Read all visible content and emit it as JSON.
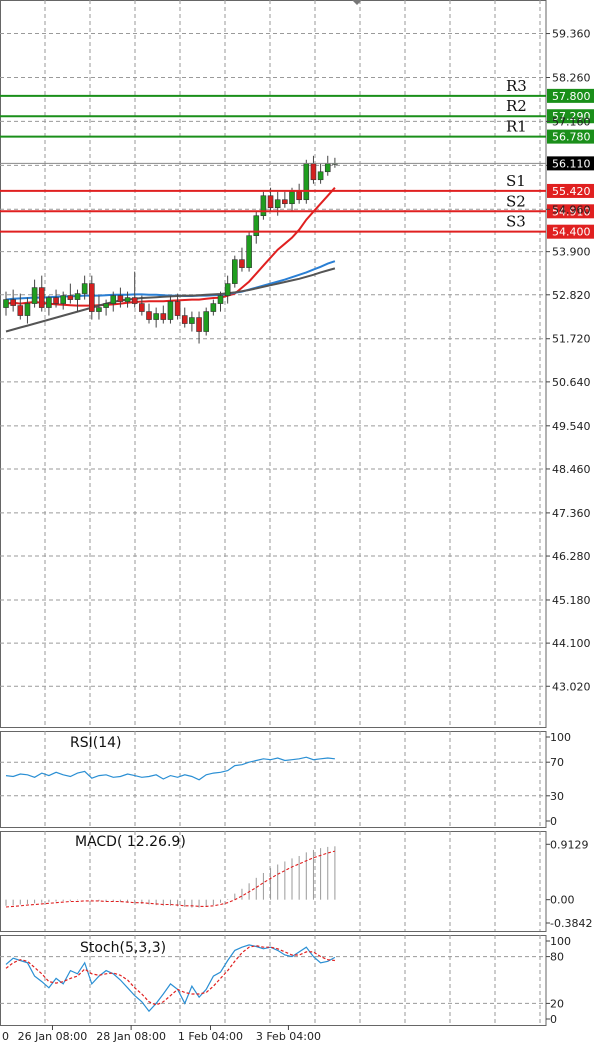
{
  "chart_data": [
    {
      "type": "candlestick",
      "price_axis": {
        "ticks": [
          "59.360",
          "58.260",
          "57.160",
          "56.060",
          "54.960",
          "53.900",
          "52.820",
          "51.720",
          "50.640",
          "49.540",
          "48.460",
          "47.360",
          "46.280",
          "45.180",
          "44.100",
          "43.020"
        ],
        "ylim": [
          42.0,
          60.2
        ]
      },
      "current_price": "56.110",
      "levels": [
        {
          "name": "R3",
          "value": 57.8,
          "label": "57.800",
          "color": "#1a8f1a"
        },
        {
          "name": "R2",
          "value": 57.29,
          "label": "57.290",
          "color": "#1a8f1a"
        },
        {
          "name": "R1",
          "value": 56.78,
          "label": "56.780",
          "color": "#1a8f1a"
        },
        {
          "name": "S1",
          "value": 55.42,
          "label": "55.420",
          "color": "#e02020"
        },
        {
          "name": "S2",
          "value": 54.91,
          "label": "54.910",
          "color": "#e02020"
        },
        {
          "name": "S3",
          "value": 54.4,
          "label": "54.400",
          "color": "#e02020"
        }
      ],
      "candles": [
        [
          52.5,
          52.9,
          52.3,
          52.7
        ],
        [
          52.7,
          52.95,
          52.4,
          52.55
        ],
        [
          52.55,
          52.85,
          52.2,
          52.3
        ],
        [
          52.3,
          52.75,
          52.1,
          52.6
        ],
        [
          52.6,
          53.2,
          52.5,
          53.0
        ],
        [
          53.0,
          53.3,
          52.4,
          52.5
        ],
        [
          52.5,
          52.8,
          52.3,
          52.75
        ],
        [
          52.75,
          52.95,
          52.5,
          52.6
        ],
        [
          52.6,
          52.9,
          52.45,
          52.8
        ],
        [
          52.8,
          53.1,
          52.6,
          52.7
        ],
        [
          52.7,
          52.95,
          52.4,
          52.85
        ],
        [
          52.85,
          53.3,
          52.7,
          53.1
        ],
        [
          53.1,
          53.3,
          52.2,
          52.4
        ],
        [
          52.4,
          52.8,
          52.2,
          52.5
        ],
        [
          52.5,
          52.7,
          52.3,
          52.6
        ],
        [
          52.6,
          52.9,
          52.4,
          52.8
        ],
        [
          52.8,
          53.0,
          52.5,
          52.65
        ],
        [
          52.65,
          52.9,
          52.5,
          52.75
        ],
        [
          52.75,
          53.4,
          52.5,
          52.6
        ],
        [
          52.6,
          52.8,
          52.3,
          52.4
        ],
        [
          52.4,
          52.6,
          52.1,
          52.2
        ],
        [
          52.2,
          52.5,
          52.0,
          52.35
        ],
        [
          52.35,
          52.55,
          52.1,
          52.2
        ],
        [
          52.2,
          52.8,
          52.1,
          52.65
        ],
        [
          52.65,
          52.85,
          52.2,
          52.3
        ],
        [
          52.3,
          52.5,
          52.0,
          52.1
        ],
        [
          52.1,
          52.4,
          51.9,
          52.25
        ],
        [
          52.25,
          52.4,
          51.6,
          51.9
        ],
        [
          51.9,
          52.5,
          51.8,
          52.4
        ],
        [
          52.4,
          52.7,
          52.3,
          52.6
        ],
        [
          52.6,
          52.9,
          52.4,
          52.8
        ],
        [
          52.8,
          53.3,
          52.6,
          53.1
        ],
        [
          53.1,
          53.8,
          53.0,
          53.7
        ],
        [
          53.7,
          54.0,
          53.4,
          53.5
        ],
        [
          53.5,
          54.4,
          53.4,
          54.3
        ],
        [
          54.3,
          54.9,
          54.1,
          54.8
        ],
        [
          54.8,
          55.4,
          54.7,
          55.3
        ],
        [
          55.3,
          55.5,
          54.9,
          55.0
        ],
        [
          55.0,
          55.4,
          54.8,
          55.2
        ],
        [
          55.2,
          55.4,
          55.0,
          55.1
        ],
        [
          55.1,
          55.5,
          54.9,
          55.4
        ],
        [
          55.4,
          55.6,
          55.1,
          55.2
        ],
        [
          55.2,
          56.2,
          55.1,
          56.1
        ],
        [
          56.1,
          56.3,
          55.6,
          55.7
        ],
        [
          55.7,
          56.1,
          55.6,
          55.9
        ],
        [
          55.9,
          56.3,
          55.8,
          56.1
        ],
        [
          56.1,
          56.25,
          56.0,
          56.11
        ]
      ],
      "moving_averages": [
        {
          "color": "#e02020",
          "values": [
            52.6,
            52.62,
            52.6,
            52.62,
            52.64,
            52.62,
            52.6,
            52.58,
            52.57,
            52.56,
            52.55,
            52.55,
            52.55,
            52.56,
            52.57,
            52.58,
            52.6,
            52.62,
            52.64,
            52.65,
            52.66,
            52.66,
            52.66,
            52.67,
            52.68,
            52.69,
            52.7,
            52.7,
            52.72,
            52.74,
            52.75,
            52.8,
            52.85,
            53.0,
            53.15,
            53.35,
            53.55,
            53.75,
            53.95,
            54.1,
            54.25,
            54.45,
            54.7,
            54.9,
            55.1,
            55.3,
            55.5
          ]
        },
        {
          "color": "#2a7fd4",
          "values": [
            52.7,
            52.72,
            52.73,
            52.74,
            52.75,
            52.75,
            52.76,
            52.77,
            52.78,
            52.78,
            52.79,
            52.8,
            52.8,
            52.8,
            52.81,
            52.82,
            52.82,
            52.82,
            52.83,
            52.83,
            52.82,
            52.82,
            52.81,
            52.8,
            52.8,
            52.79,
            52.79,
            52.8,
            52.8,
            52.81,
            52.82,
            52.84,
            52.87,
            52.9,
            52.95,
            53.0,
            53.05,
            53.1,
            53.15,
            53.2,
            53.26,
            53.32,
            53.38,
            53.45,
            53.52,
            53.6,
            53.66
          ]
        },
        {
          "color": "#555555",
          "values": [
            51.9,
            51.95,
            52.0,
            52.05,
            52.1,
            52.15,
            52.2,
            52.25,
            52.3,
            52.35,
            52.4,
            52.45,
            52.5,
            52.55,
            52.6,
            52.64,
            52.68,
            52.7,
            52.72,
            52.74,
            52.75,
            52.76,
            52.77,
            52.78,
            52.79,
            52.8,
            52.8,
            52.81,
            52.82,
            52.83,
            52.84,
            52.86,
            52.88,
            52.91,
            52.94,
            52.98,
            53.02,
            53.06,
            53.1,
            53.14,
            53.18,
            53.22,
            53.27,
            53.32,
            53.38,
            53.43,
            53.48
          ]
        }
      ]
    },
    {
      "type": "line",
      "title": "RSI(14)",
      "ticks": [
        "100",
        "70",
        "30",
        "0"
      ],
      "ylim": [
        0,
        100
      ],
      "series": [
        {
          "color": "#2a8fd4",
          "values": [
            54,
            53,
            56,
            55,
            52,
            57,
            54,
            58,
            55,
            53,
            57,
            59,
            51,
            54,
            55,
            52,
            53,
            56,
            54,
            52,
            53,
            55,
            50,
            54,
            52,
            55,
            53,
            49,
            55,
            57,
            58,
            60,
            66,
            67,
            70,
            72,
            74,
            73,
            75,
            72,
            73,
            74,
            76,
            73,
            74,
            75,
            74
          ]
        }
      ]
    },
    {
      "type": "bar",
      "title": "MACD( 12.26.9)",
      "ticks": [
        "0.9129",
        "0.00",
        "-0.3842"
      ],
      "ylim": [
        -0.3842,
        1.0
      ],
      "histogram": [
        -0.1,
        -0.09,
        -0.08,
        -0.07,
        -0.06,
        -0.05,
        -0.04,
        -0.03,
        -0.02,
        -0.02,
        -0.01,
        0.0,
        -0.01,
        -0.02,
        -0.03,
        -0.03,
        -0.04,
        -0.05,
        -0.06,
        -0.07,
        -0.08,
        -0.09,
        -0.1,
        -0.1,
        -0.11,
        -0.12,
        -0.13,
        -0.13,
        -0.12,
        -0.09,
        -0.05,
        0.01,
        0.1,
        0.18,
        0.27,
        0.36,
        0.44,
        0.52,
        0.58,
        0.63,
        0.68,
        0.72,
        0.78,
        0.82,
        0.85,
        0.87,
        0.88
      ],
      "signal": [
        -0.12,
        -0.11,
        -0.1,
        -0.09,
        -0.08,
        -0.07,
        -0.06,
        -0.05,
        -0.04,
        -0.03,
        -0.03,
        -0.02,
        -0.02,
        -0.02,
        -0.03,
        -0.03,
        -0.03,
        -0.04,
        -0.05,
        -0.05,
        -0.06,
        -0.07,
        -0.08,
        -0.08,
        -0.09,
        -0.1,
        -0.1,
        -0.11,
        -0.11,
        -0.1,
        -0.08,
        -0.05,
        0.0,
        0.06,
        0.13,
        0.2,
        0.28,
        0.35,
        0.42,
        0.48,
        0.54,
        0.59,
        0.64,
        0.69,
        0.73,
        0.77,
        0.8
      ]
    },
    {
      "type": "line",
      "title": "Stoch(5,3,3)",
      "ticks": [
        "100",
        "80",
        "20",
        "0"
      ],
      "ylim": [
        0,
        100
      ],
      "series": [
        {
          "color": "#2a8fd4",
          "values": [
            70,
            78,
            75,
            72,
            55,
            48,
            40,
            52,
            45,
            62,
            58,
            72,
            45,
            55,
            62,
            58,
            50,
            40,
            30,
            22,
            10,
            20,
            32,
            45,
            38,
            20,
            42,
            28,
            38,
            55,
            60,
            75,
            88,
            92,
            95,
            93,
            90,
            92,
            88,
            82,
            80,
            86,
            92,
            80,
            72,
            74,
            79
          ]
        },
        {
          "color": "#e02020",
          "values": [
            65,
            72,
            76,
            74,
            66,
            58,
            48,
            46,
            48,
            52,
            55,
            64,
            58,
            56,
            58,
            59,
            56,
            50,
            40,
            32,
            22,
            18,
            22,
            30,
            38,
            34,
            32,
            32,
            34,
            42,
            52,
            62,
            74,
            85,
            92,
            94,
            92,
            92,
            90,
            86,
            82,
            82,
            86,
            86,
            80,
            76,
            75
          ]
        }
      ]
    }
  ],
  "time_axis": {
    "labels": [
      {
        "index": -1.2,
        "text": "0"
      },
      {
        "index": 6.5,
        "text": "26 Jan 08:00"
      },
      {
        "index": 17.5,
        "text": "28 Jan 08:00"
      },
      {
        "index": 28.6,
        "text": "1 Feb 04:00"
      },
      {
        "index": 39.5,
        "text": "3 Feb 04:00"
      }
    ]
  }
}
